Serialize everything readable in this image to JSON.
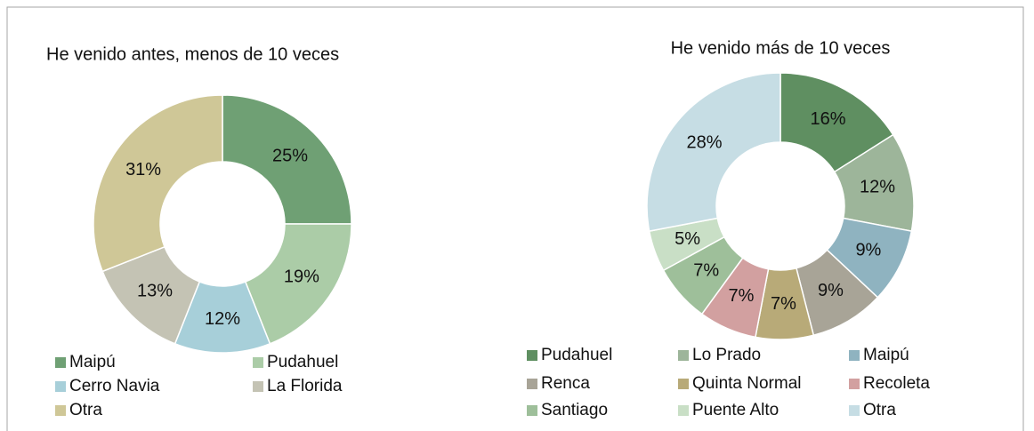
{
  "chart_data": [
    {
      "type": "donut",
      "title": "He venido antes, menos de 10 veces",
      "categories": [
        "Maipú",
        "Pudahuel",
        "Cerro Navia",
        "La Florida",
        "Otra"
      ],
      "values": [
        25,
        19,
        12,
        13,
        31
      ],
      "value_labels": [
        "25%",
        "19%",
        "12%",
        "13%",
        "31%"
      ],
      "colors": [
        "#6fa074",
        "#abcca7",
        "#a7cfd9",
        "#c4c3b4",
        "#cfc797"
      ]
    },
    {
      "type": "donut",
      "title": "He venido más de 10 veces",
      "categories": [
        "Pudahuel",
        "Lo Prado",
        "Maipú",
        "Renca",
        "Quinta Normal",
        "Recoleta",
        "Santiago",
        "Puente Alto",
        "Otra"
      ],
      "values": [
        16,
        12,
        9,
        9,
        7,
        7,
        7,
        5,
        28
      ],
      "value_labels": [
        "16%",
        "12%",
        "9%",
        "9%",
        "7%",
        "7%",
        "7%",
        "5%",
        "28%"
      ],
      "colors": [
        "#5f8f61",
        "#9db59a",
        "#8fb3c0",
        "#a8a497",
        "#b8aa78",
        "#d2a0a0",
        "#9ebf9a",
        "#c9dfc6",
        "#c6dde4"
      ]
    }
  ]
}
